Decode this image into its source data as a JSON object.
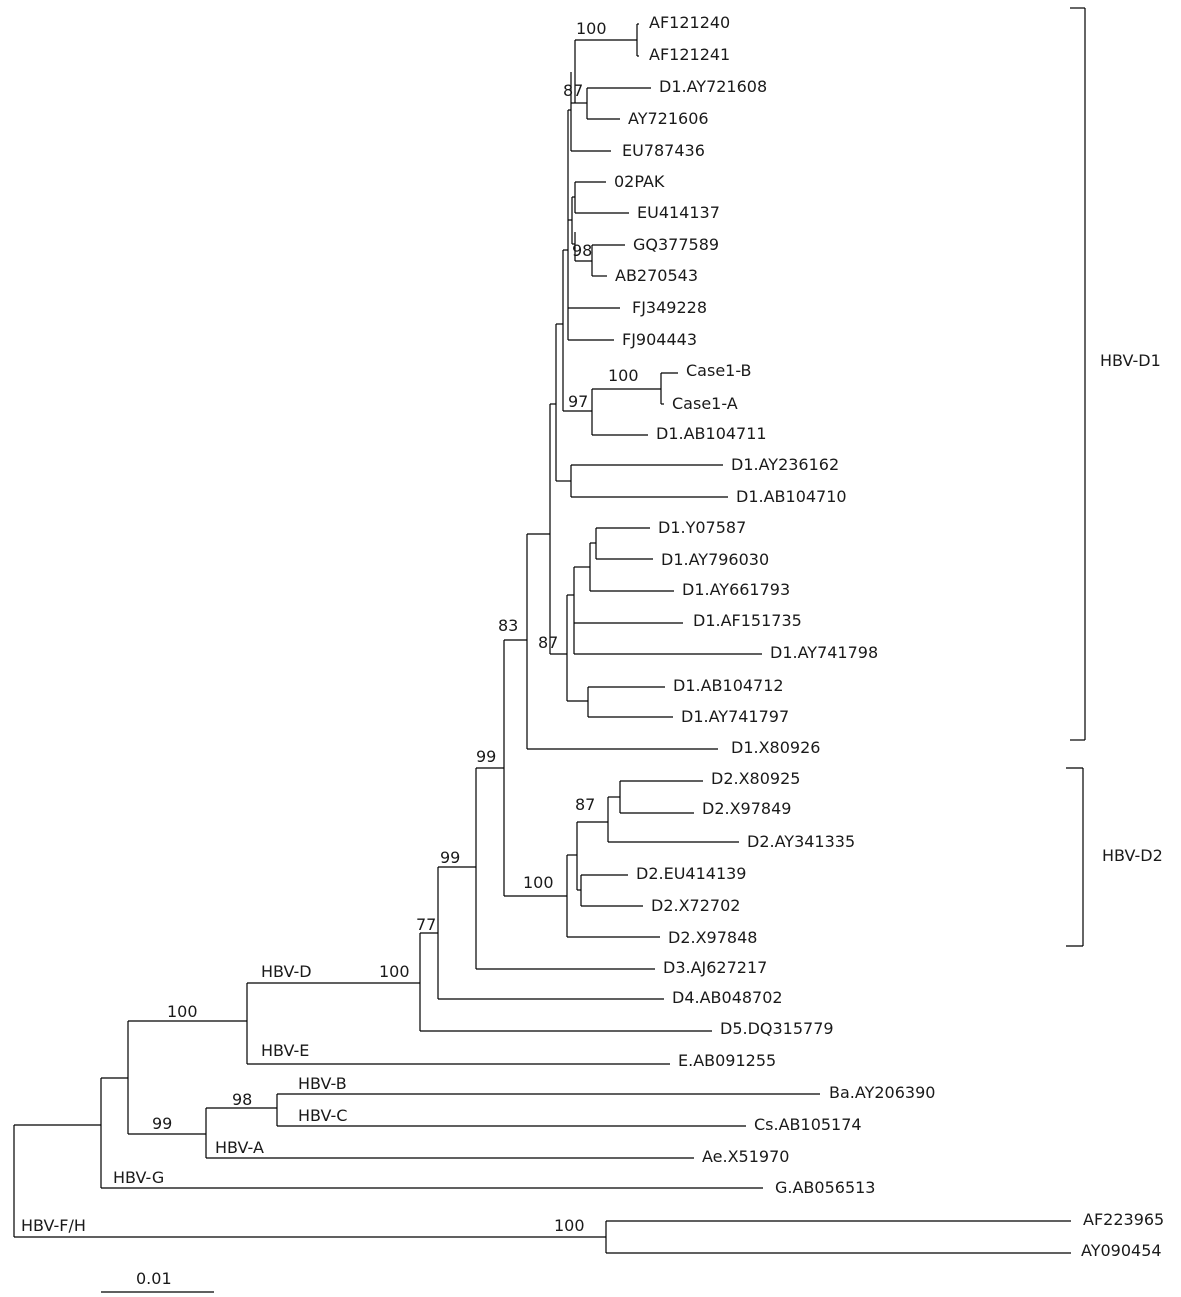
{
  "tree": {
    "leaves": {
      "AF121240": "AF121240",
      "AF121241": "AF121241",
      "D1.AY721608": "D1.AY721608",
      "AY721606": "AY721606",
      "EU787436": "EU787436",
      "02PAK": "02PAK",
      "EU414137": "EU414137",
      "GQ377589": "GQ377589",
      "AB270543": "AB270543",
      "FJ349228": "FJ349228",
      "FJ904443": "FJ904443",
      "Case1-B": "Case1-B",
      "Case1-A": "Case1-A",
      "D1.AB104711": "D1.AB104711",
      "D1.AY236162": "D1.AY236162",
      "D1.AB104710": "D1.AB104710",
      "D1.Y07587": "D1.Y07587",
      "D1.AY796030": "D1.AY796030",
      "D1.AY661793": "D1.AY661793",
      "D1.AF151735": "D1.AF151735",
      "D1.AY741798": "D1.AY741798",
      "D1.AB104712": "D1.AB104712",
      "D1.AY741797": "D1.AY741797",
      "D1.X80926": "D1.X80926",
      "D2.X80925": "D2.X80925",
      "D2.X97849": "D2.X97849",
      "D2.AY341335": "D2.AY341335",
      "D2.EU414139": "D2.EU414139",
      "D2.X72702": "D2.X72702",
      "D2.X97848": "D2.X97848",
      "D3.AJ627217": "D3.AJ627217",
      "D4.AB048702": "D4.AB048702",
      "D5.DQ315779": "D5.DQ315779",
      "E.AB091255": "E.AB091255",
      "Ba.AY206390": "Ba.AY206390",
      "Cs.AB105174": "Cs.AB105174",
      "Ae.X51970": "Ae.X51970",
      "G.AB056513": "G.AB056513",
      "AF223965": "AF223965",
      "AY090454": "AY090454"
    },
    "bootstrap": {
      "n_af": "100",
      "n_87a": "87",
      "n_98": "98",
      "n_case": "100",
      "n_97": "97",
      "n_87b": "87",
      "n_83": "83",
      "n_99a": "99",
      "n_87c": "87",
      "n_100d2": "100",
      "n_99b": "99",
      "n_77": "77",
      "n_100d": "100",
      "n_100de": "100",
      "n_98bc": "98",
      "n_99abc": "99",
      "n_100fh": "100"
    },
    "branch_labels": {
      "hbv_d": "HBV-D",
      "hbv_e": "HBV-E",
      "hbv_b": "HBV-B",
      "hbv_c": "HBV-C",
      "hbv_a": "HBV-A",
      "hbv_g": "HBV-G",
      "hbv_fh": "HBV-F/H"
    },
    "clades": {
      "d1": "HBV-D1",
      "d2": "HBV-D2"
    },
    "scale": "0.01"
  }
}
